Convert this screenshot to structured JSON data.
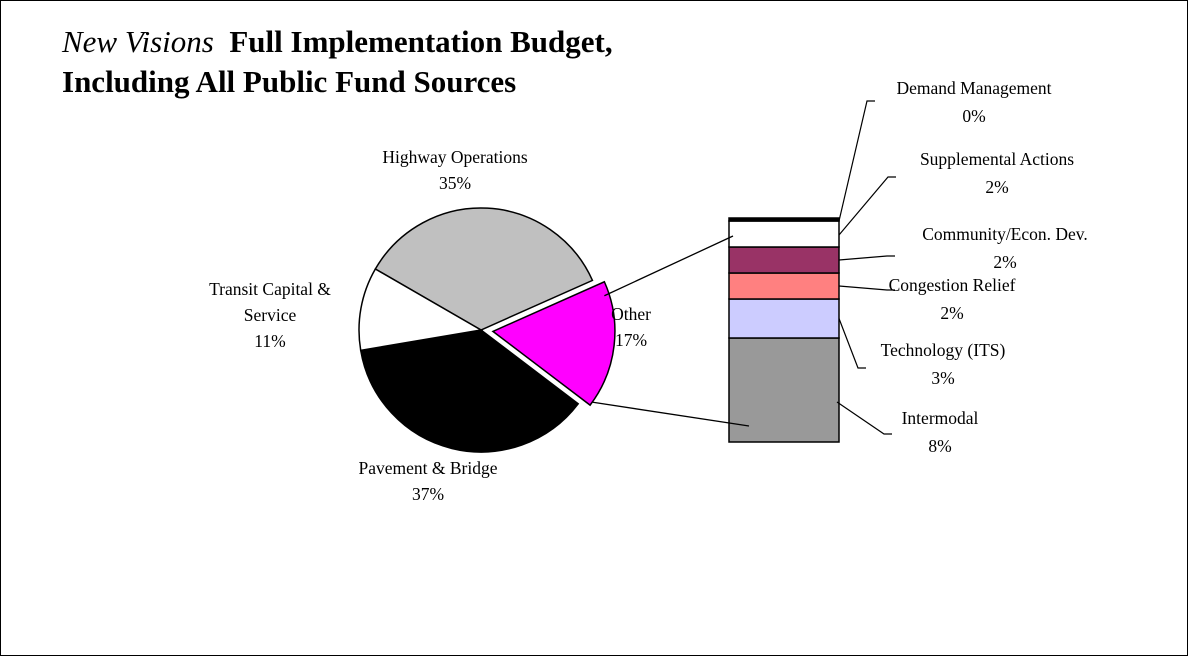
{
  "title": {
    "italic_part": "New Visions",
    "bold_part": "Full Implementation Budget,",
    "line2": "Including All Public Fund Sources"
  },
  "chart_data": {
    "type": "pie",
    "title": "New Visions Full Implementation Budget, Including All Public Fund Sources",
    "pie": {
      "slices": [
        {
          "label": "Highway Operations",
          "value": 35,
          "display": "35%",
          "color": "#c0c0c0"
        },
        {
          "label": "Other",
          "value": 17,
          "display": "17%",
          "color": "#ff00ff",
          "exploded": true
        },
        {
          "label": "Pavement & Bridge",
          "value": 37,
          "display": "37%",
          "color": "#000000"
        },
        {
          "label": "Transit Capital & Service",
          "label_lines": [
            "Transit Capital &",
            "Service"
          ],
          "value": 11,
          "display": "11%",
          "color": "#ffffff"
        }
      ]
    },
    "breakdown": {
      "of": "Other",
      "type": "stacked-bar",
      "segments": [
        {
          "label": "Intermodal",
          "value": 8,
          "display": "8%",
          "color": "#999999"
        },
        {
          "label": "Technology (ITS)",
          "value": 3,
          "display": "3%",
          "color": "#ccccff"
        },
        {
          "label": "Congestion Relief",
          "value": 2,
          "display": "2%",
          "color": "#ff8080"
        },
        {
          "label": "Community/Econ. Dev.",
          "value": 2,
          "display": "2%",
          "color": "#993366"
        },
        {
          "label": "Supplemental Actions",
          "value": 2,
          "display": "2%",
          "color": "#ffffff"
        },
        {
          "label": "Demand Management",
          "value": 0,
          "display": "0%",
          "color": "#000000"
        }
      ]
    }
  }
}
